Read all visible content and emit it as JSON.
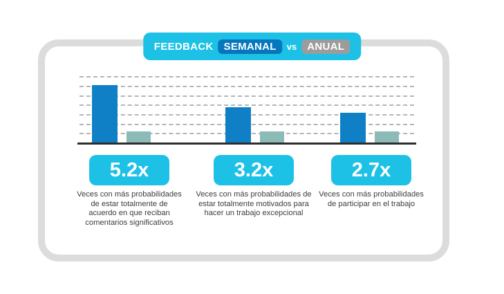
{
  "header": {
    "prefix": "FEEDBACK",
    "highlight_weekly": "SEMANAL",
    "connector": "vs",
    "highlight_annual": "ANUAL"
  },
  "colors": {
    "cyan": "#1ec1e6",
    "chip_blue": "#0677bd",
    "chip_gray": "#9c9c9b",
    "bar_blue": "#0f80c6",
    "bar_teal": "#8cbab6",
    "card_border": "#dcdcdc",
    "gridline": "#a3a3a3",
    "baseline": "#2d2d2d",
    "text": "#3c3c3c"
  },
  "chart_data": {
    "type": "bar",
    "title": "FEEDBACK SEMANAL vs ANUAL",
    "categories": [
      "Estar totalmente de acuerdo en que reciban comentarios significativos",
      "Estar totalmente motivados para hacer un trabajo excepcional",
      "Participar en el trabajo"
    ],
    "series": [
      {
        "name": "Feedback semanal",
        "color": "#0f80c6",
        "values": [
          5.2,
          3.2,
          2.7
        ]
      },
      {
        "name": "Feedback anual",
        "color": "#8cbab6",
        "values": [
          1,
          1,
          1
        ]
      }
    ],
    "unit": "x (veces respecto al feedback anual)",
    "data_labels": [
      "5.2x",
      "3.2x",
      "2.7x"
    ],
    "ylim": [
      0,
      6
    ],
    "gridlines": 7,
    "grid": "dashed",
    "legend_position": "none",
    "xlabel": "",
    "ylabel": ""
  },
  "stats": [
    {
      "value": "5.2x",
      "description": "Veces con más probabilidades de estar totalmente de acuerdo en que reciban comentarios significativos"
    },
    {
      "value": "3.2x",
      "description": "Veces con más probabilidades de estar totalmente motivados para hacer un trabajo excepcional"
    },
    {
      "value": "2.7x",
      "description": "Veces con más probabilidades de participar en el trabajo"
    }
  ]
}
